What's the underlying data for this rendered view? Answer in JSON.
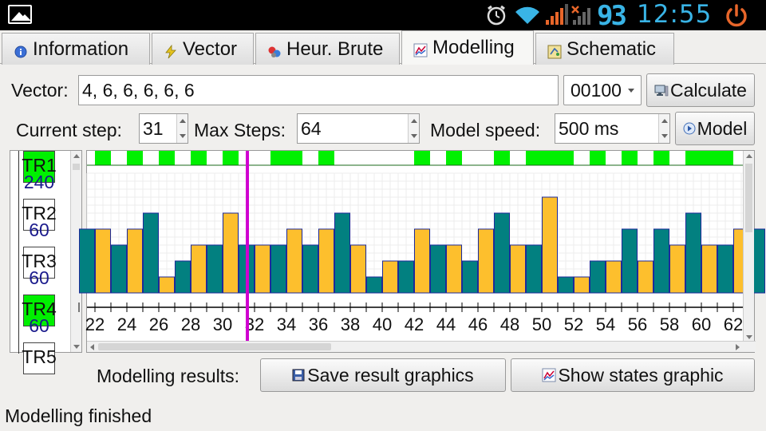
{
  "status_bar": {
    "clock": "12:55",
    "battery_level": "93",
    "icons": [
      "gallery-icon",
      "alarm-clock-icon",
      "wifi-icon",
      "signal-icon",
      "no-signal-icon",
      "power-icon"
    ]
  },
  "tabs": [
    {
      "label": "Information",
      "icon": "info-icon",
      "active": false
    },
    {
      "label": "Vector",
      "icon": "lightning-icon",
      "active": false
    },
    {
      "label": "Heur. Brute",
      "icon": "molecule-icon",
      "active": false
    },
    {
      "label": "Modelling",
      "icon": "chart-icon",
      "active": true
    },
    {
      "label": "Schematic",
      "icon": "schematic-icon",
      "active": false
    }
  ],
  "vector": {
    "label": "Vector:",
    "value": "4, 6, 6, 6, 6, 6",
    "mode_value": "00100",
    "calculate_label": "Calculate"
  },
  "steps": {
    "current_label": "Current step:",
    "current_value": "31",
    "max_label": "Max Steps:",
    "max_value": "64",
    "speed_label": "Model speed:",
    "speed_value": "500 ms",
    "model_label": "Model"
  },
  "transitions": [
    {
      "name": "TR1",
      "value": "240",
      "active": true
    },
    {
      "name": "TR2",
      "value": "60",
      "active": false
    },
    {
      "name": "TR3",
      "value": "60",
      "active": false
    },
    {
      "name": "TR4",
      "value": "60",
      "active": true
    },
    {
      "name": "TR5",
      "value": "",
      "active": false
    }
  ],
  "results": {
    "label": "Modelling results:",
    "save_label": "Save result graphics",
    "show_label": "Show states graphic"
  },
  "status_text": "Modelling finished",
  "colors": {
    "active_green": "#00f000",
    "bar_teal": "#028080",
    "bar_amber": "#fdbf2d",
    "current_marker": "#d000d0",
    "bar_outline": "#1d2a9a"
  },
  "chart_data": {
    "type": "bar",
    "x_tick_labels": [
      "22",
      "24",
      "26",
      "28",
      "30",
      "32",
      "34",
      "36",
      "38",
      "40",
      "42",
      "44",
      "46",
      "48",
      "50",
      "52",
      "54",
      "56",
      "58",
      "60",
      "62"
    ],
    "steps": [
      21,
      22,
      23,
      24,
      25,
      26,
      27,
      28,
      29,
      30,
      31,
      32,
      33,
      34,
      35,
      36,
      37,
      38,
      39,
      40,
      41,
      42,
      43,
      44,
      45,
      46,
      47,
      48,
      49,
      50,
      51,
      52,
      53,
      54,
      55,
      56,
      57,
      58,
      59,
      60,
      61,
      62,
      63
    ],
    "values": [
      4,
      4,
      3,
      4,
      5,
      1,
      2,
      3,
      3,
      5,
      3,
      3,
      3,
      4,
      3,
      4,
      5,
      3,
      1,
      2,
      2,
      4,
      3,
      3,
      2,
      4,
      5,
      3,
      3,
      6,
      1,
      1,
      2,
      2,
      4,
      2,
      4,
      3,
      5,
      3,
      3,
      4,
      4
    ],
    "active_steps": [
      22,
      24,
      26,
      28,
      30,
      33,
      34,
      36,
      42,
      44,
      47,
      49,
      50,
      51,
      53,
      55,
      57,
      59,
      60,
      61
    ],
    "current_step": 31,
    "ylim": [
      0,
      6
    ]
  }
}
